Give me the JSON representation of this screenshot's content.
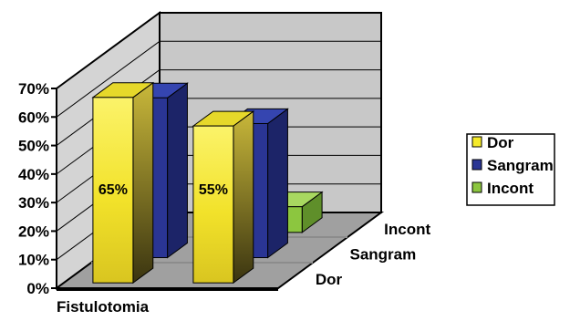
{
  "chart_data": {
    "type": "bar",
    "categories": [
      "Fistulotomia",
      ""
    ],
    "series": [
      {
        "name": "Dor",
        "values": [
          65,
          55
        ],
        "data_labels": [
          "65%",
          "55%"
        ]
      },
      {
        "name": "Sangram",
        "values": [
          56,
          47
        ]
      },
      {
        "name": "Incont",
        "values": [
          0,
          9
        ]
      }
    ],
    "ylim": [
      0,
      70
    ],
    "yticks": [
      "0%",
      "10%",
      "20%",
      "30%",
      "40%",
      "50%",
      "60%",
      "70%"
    ],
    "depth_labels": [
      "Dor",
      "Sangram",
      "Incont"
    ],
    "grid": true,
    "legend": "right",
    "colors": {
      "Dor": "#f5ea2a",
      "Sangram": "#2a3594",
      "Incont": "#8cc63f",
      "wall": "#c8c8c8",
      "floor": "#9c9c9c"
    }
  }
}
